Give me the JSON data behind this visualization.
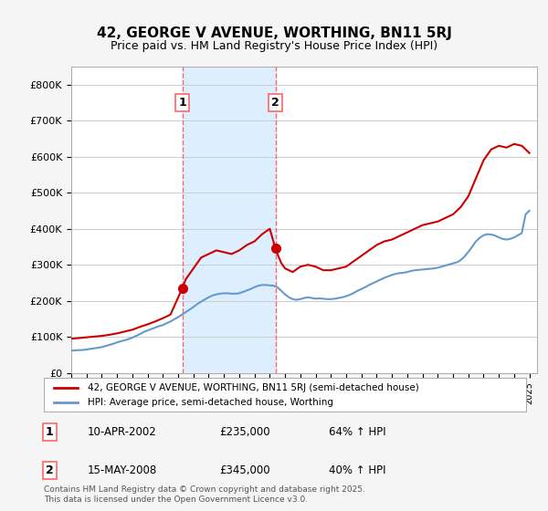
{
  "title": "42, GEORGE V AVENUE, WORTHING, BN11 5RJ",
  "subtitle": "Price paid vs. HM Land Registry's House Price Index (HPI)",
  "ylabel_ticks": [
    "£0",
    "£100K",
    "£200K",
    "£300K",
    "£400K",
    "£500K",
    "£600K",
    "£700K",
    "£800K"
  ],
  "ylim": [
    0,
    850000
  ],
  "xlim_start": 1995.0,
  "xlim_end": 2025.5,
  "purchase1_date": 2002.27,
  "purchase1_price": 235000,
  "purchase1_label": "1",
  "purchase1_text": "10-APR-2002",
  "purchase1_pct": "64% ↑ HPI",
  "purchase2_date": 2008.37,
  "purchase2_price": 345000,
  "purchase2_label": "2",
  "purchase2_text": "15-MAY-2008",
  "purchase2_pct": "40% ↑ HPI",
  "red_line_color": "#cc0000",
  "blue_line_color": "#6699cc",
  "shade_color": "#ddeeff",
  "vline_color": "#ff6666",
  "legend_label_red": "42, GEORGE V AVENUE, WORTHING, BN11 5RJ (semi-detached house)",
  "legend_label_blue": "HPI: Average price, semi-detached house, Worthing",
  "footnote": "Contains HM Land Registry data © Crown copyright and database right 2025.\nThis data is licensed under the Open Government Licence v3.0.",
  "background_color": "#f5f5f5",
  "plot_bg_color": "#ffffff",
  "hpi_years": [
    1995.0,
    1995.25,
    1995.5,
    1995.75,
    1996.0,
    1996.25,
    1996.5,
    1996.75,
    1997.0,
    1997.25,
    1997.5,
    1997.75,
    1998.0,
    1998.25,
    1998.5,
    1998.75,
    1999.0,
    1999.25,
    1999.5,
    1999.75,
    2000.0,
    2000.25,
    2000.5,
    2000.75,
    2001.0,
    2001.25,
    2001.5,
    2001.75,
    2002.0,
    2002.25,
    2002.5,
    2002.75,
    2003.0,
    2003.25,
    2003.5,
    2003.75,
    2004.0,
    2004.25,
    2004.5,
    2004.75,
    2005.0,
    2005.25,
    2005.5,
    2005.75,
    2006.0,
    2006.25,
    2006.5,
    2006.75,
    2007.0,
    2007.25,
    2007.5,
    2007.75,
    2008.0,
    2008.25,
    2008.5,
    2008.75,
    2009.0,
    2009.25,
    2009.5,
    2009.75,
    2010.0,
    2010.25,
    2010.5,
    2010.75,
    2011.0,
    2011.25,
    2011.5,
    2011.75,
    2012.0,
    2012.25,
    2012.5,
    2012.75,
    2013.0,
    2013.25,
    2013.5,
    2013.75,
    2014.0,
    2014.25,
    2014.5,
    2014.75,
    2015.0,
    2015.25,
    2015.5,
    2015.75,
    2016.0,
    2016.25,
    2016.5,
    2016.75,
    2017.0,
    2017.25,
    2017.5,
    2017.75,
    2018.0,
    2018.25,
    2018.5,
    2018.75,
    2019.0,
    2019.25,
    2019.5,
    2019.75,
    2020.0,
    2020.25,
    2020.5,
    2020.75,
    2021.0,
    2021.25,
    2021.5,
    2021.75,
    2022.0,
    2022.25,
    2022.5,
    2022.75,
    2023.0,
    2023.25,
    2023.5,
    2023.75,
    2024.0,
    2024.25,
    2024.5,
    2024.75,
    2025.0
  ],
  "hpi_values": [
    62000,
    63000,
    63500,
    64000,
    65000,
    67000,
    68500,
    70000,
    72000,
    75000,
    78000,
    81000,
    85000,
    88000,
    91000,
    94000,
    98000,
    103000,
    108000,
    114000,
    118000,
    122000,
    126000,
    130000,
    133000,
    138000,
    143000,
    149000,
    155000,
    162000,
    169000,
    176000,
    183000,
    191000,
    198000,
    204000,
    210000,
    215000,
    218000,
    220000,
    221000,
    221000,
    220000,
    220000,
    221000,
    225000,
    229000,
    233000,
    238000,
    242000,
    244000,
    244000,
    243000,
    242000,
    238000,
    228000,
    218000,
    210000,
    205000,
    203000,
    205000,
    208000,
    210000,
    208000,
    206000,
    207000,
    206000,
    205000,
    205000,
    206000,
    208000,
    210000,
    213000,
    217000,
    222000,
    228000,
    233000,
    238000,
    244000,
    249000,
    254000,
    259000,
    264000,
    268000,
    272000,
    275000,
    277000,
    278000,
    280000,
    283000,
    285000,
    286000,
    287000,
    288000,
    289000,
    290000,
    292000,
    295000,
    298000,
    301000,
    304000,
    307000,
    313000,
    323000,
    336000,
    350000,
    365000,
    375000,
    382000,
    385000,
    384000,
    381000,
    376000,
    372000,
    370000,
    372000,
    376000,
    382000,
    388000,
    440000,
    450000
  ],
  "red_years": [
    1995.0,
    1995.5,
    1996.0,
    1996.5,
    1997.0,
    1997.5,
    1998.0,
    1998.5,
    1999.0,
    1999.5,
    2000.0,
    2000.5,
    2001.0,
    2001.5,
    2002.27,
    2002.5,
    2002.75,
    2003.0,
    2003.5,
    2004.0,
    2004.5,
    2005.0,
    2005.5,
    2006.0,
    2006.5,
    2007.0,
    2007.5,
    2008.0,
    2008.37,
    2008.5,
    2008.75,
    2009.0,
    2009.5,
    2010.0,
    2010.5,
    2011.0,
    2011.5,
    2012.0,
    2012.5,
    2013.0,
    2013.5,
    2014.0,
    2014.5,
    2015.0,
    2015.5,
    2016.0,
    2016.5,
    2017.0,
    2017.5,
    2018.0,
    2018.5,
    2019.0,
    2019.5,
    2020.0,
    2020.5,
    2021.0,
    2021.5,
    2022.0,
    2022.5,
    2023.0,
    2023.5,
    2024.0,
    2024.5,
    2025.0
  ],
  "red_values": [
    95000,
    97000,
    99000,
    101000,
    103000,
    106000,
    110000,
    115000,
    120000,
    128000,
    135000,
    143000,
    152000,
    162000,
    235000,
    260000,
    275000,
    290000,
    320000,
    330000,
    340000,
    335000,
    330000,
    340000,
    355000,
    365000,
    385000,
    400000,
    345000,
    330000,
    305000,
    290000,
    280000,
    295000,
    300000,
    295000,
    285000,
    285000,
    290000,
    295000,
    310000,
    325000,
    340000,
    355000,
    365000,
    370000,
    380000,
    390000,
    400000,
    410000,
    415000,
    420000,
    430000,
    440000,
    460000,
    490000,
    540000,
    590000,
    620000,
    630000,
    625000,
    635000,
    630000,
    610000
  ]
}
